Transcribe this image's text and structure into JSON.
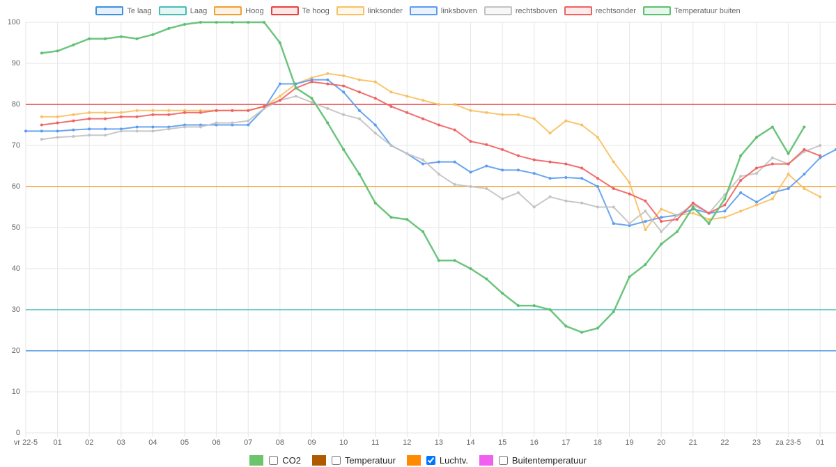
{
  "chart_data": {
    "type": "line",
    "x": [
      0,
      0.5,
      1,
      1.5,
      2,
      2.5,
      3,
      3.5,
      4,
      4.5,
      5,
      5.5,
      6,
      6.5,
      7,
      7.5,
      8,
      8.5,
      9,
      9.5,
      10,
      10.5,
      11,
      11.5,
      12,
      12.5,
      13,
      13.5,
      14,
      14.5,
      15,
      15.5,
      16,
      16.5,
      17,
      17.5,
      18,
      18.5,
      19,
      19.5,
      20,
      20.5,
      21,
      21.5,
      22,
      22.5,
      23,
      23.5,
      24,
      24.5,
      25,
      25.5
    ],
    "xlim": [
      0,
      25.5
    ],
    "xticks": [
      {
        "value": 0,
        "label": "vr 22-5"
      },
      {
        "value": 1,
        "label": "01"
      },
      {
        "value": 2,
        "label": "02"
      },
      {
        "value": 3,
        "label": "03"
      },
      {
        "value": 4,
        "label": "04"
      },
      {
        "value": 5,
        "label": "05"
      },
      {
        "value": 6,
        "label": "06"
      },
      {
        "value": 7,
        "label": "07"
      },
      {
        "value": 8,
        "label": "08"
      },
      {
        "value": 9,
        "label": "09"
      },
      10,
      11,
      12,
      13,
      14,
      15,
      16,
      17,
      18,
      19,
      20,
      21,
      22,
      23,
      {
        "value": 24,
        "label": "za 23-5"
      },
      {
        "value": 25,
        "label": "01"
      }
    ],
    "ylim": [
      0,
      100
    ],
    "yticks": [
      0,
      10,
      20,
      30,
      40,
      50,
      60,
      70,
      80,
      90,
      100
    ],
    "grid": true,
    "series": [
      {
        "name": "Te laag",
        "color": "#3d8fe0",
        "value": 20
      },
      {
        "name": "Laag",
        "color": "#45bdb3",
        "value": 30
      },
      {
        "name": "Hoog",
        "color": "#f0a030",
        "value": 60
      },
      {
        "name": "Te hoog",
        "color": "#e84040",
        "value": 80
      },
      {
        "name": "linksonder",
        "color": "#f8c060",
        "values": [
          null,
          77,
          77,
          77.5,
          78,
          78,
          78,
          78.5,
          78.5,
          78.5,
          78.5,
          78.5,
          78.5,
          78.5,
          78.5,
          79.5,
          82,
          85,
          86.5,
          87.5,
          87,
          86,
          85.5,
          83,
          82,
          81,
          80,
          80,
          78.5,
          78,
          77.5,
          77.5,
          76.5,
          73,
          76,
          75,
          72,
          66,
          61,
          49.5,
          54.5,
          53,
          53.5,
          52,
          52.5,
          54,
          55.5,
          57,
          63,
          59.5,
          57.5,
          null
        ]
      },
      {
        "name": "linksboven",
        "color": "#5a9cf0",
        "values": [
          73.5,
          73.5,
          73.5,
          73.8,
          74,
          74,
          74,
          74.5,
          74.5,
          74.5,
          75,
          75,
          75,
          75,
          75,
          79,
          85,
          85,
          86,
          86,
          83,
          78.5,
          75,
          70,
          68,
          65.5,
          66,
          66,
          63.5,
          65,
          64,
          64,
          63.2,
          62,
          62.2,
          62,
          60,
          51,
          50.5,
          51.5,
          52.5,
          53,
          54.5,
          53.5,
          54,
          58.5,
          56.2,
          58.5,
          59.5,
          63,
          67,
          69
        ]
      },
      {
        "name": "rechtsboven",
        "color": "#c2c2c2",
        "values": [
          null,
          71.5,
          72,
          72.2,
          72.5,
          72.5,
          73.5,
          73.5,
          73.5,
          74,
          74.5,
          74.5,
          75.5,
          75.5,
          76,
          79,
          81,
          82,
          80.5,
          79,
          77.5,
          76.5,
          73,
          70,
          68,
          66.5,
          63,
          60.5,
          60,
          59.5,
          57,
          58.5,
          55,
          57.5,
          56.5,
          56,
          55,
          55,
          51,
          54,
          49,
          53,
          55.5,
          53.5,
          58,
          62.5,
          63.2,
          67,
          65.5,
          68.5,
          70,
          null
        ]
      },
      {
        "name": "rechtsonder",
        "color": "#f06060",
        "values": [
          null,
          75,
          75.5,
          76,
          76.5,
          76.5,
          77,
          77,
          77.5,
          77.5,
          78,
          78,
          78.5,
          78.5,
          78.5,
          79.5,
          81,
          84,
          85.5,
          85,
          84.5,
          83,
          81.5,
          79.5,
          78,
          76.5,
          75,
          73.8,
          71,
          70.2,
          69,
          67.5,
          66.5,
          66,
          65.5,
          64.5,
          62,
          59.5,
          58.2,
          56.5,
          51.5,
          52,
          56,
          53.5,
          55.5,
          61.5,
          64.5,
          65.5,
          65.5,
          69,
          67.5,
          null
        ]
      },
      {
        "name": "Temperatuur buiten",
        "color": "#5cbf70",
        "values": [
          null,
          92.5,
          93,
          94.5,
          96,
          96,
          96.5,
          96,
          97,
          98.5,
          99.5,
          100,
          100,
          100,
          100,
          100,
          95,
          84,
          81.5,
          75.5,
          69,
          63,
          56,
          52.5,
          52,
          49,
          42,
          42,
          40,
          37.5,
          34,
          31,
          31,
          30,
          26,
          24.5,
          25.5,
          29.5,
          38,
          41,
          46,
          49,
          55,
          51,
          57,
          67.5,
          72,
          74.5,
          68,
          74.5,
          null,
          null
        ]
      }
    ],
    "controls": [
      {
        "label": "CO2",
        "color": "#6cc46c",
        "checked": false
      },
      {
        "label": "Temperatuur",
        "color": "#b05a00",
        "checked": false
      },
      {
        "label": "Luchtv.",
        "color": "#ff8a00",
        "checked": true
      },
      {
        "label": "Buitentemperatuur",
        "color": "#f060f0",
        "checked": false
      }
    ]
  }
}
